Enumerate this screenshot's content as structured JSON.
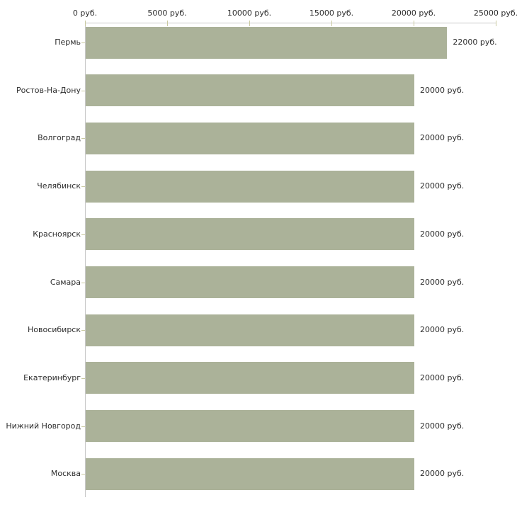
{
  "chart_data": {
    "type": "bar",
    "orientation": "horizontal",
    "title": "",
    "xlabel": "",
    "ylabel": "",
    "unit": "руб.",
    "categories": [
      "Пермь",
      "Ростов-На-Дону",
      "Волгоград",
      "Челябинск",
      "Красноярск",
      "Самара",
      "Новосибирск",
      "Екатеринбург",
      "Нижний Новгород",
      "Москва"
    ],
    "values": [
      22000,
      20000,
      20000,
      20000,
      20000,
      20000,
      20000,
      20000,
      20000,
      20000
    ],
    "value_labels": [
      "22000 руб.",
      "20000 руб.",
      "20000 руб.",
      "20000 руб.",
      "20000 руб.",
      "20000 руб.",
      "20000 руб.",
      "20000 руб.",
      "20000 руб.",
      "20000 руб."
    ],
    "xlim": [
      0,
      25000
    ],
    "x_ticks": [
      {
        "value": 0,
        "label": "0 руб."
      },
      {
        "value": 5000,
        "label": "5000 руб."
      },
      {
        "value": 10000,
        "label": "10000 руб."
      },
      {
        "value": 15000,
        "label": "15000 руб."
      },
      {
        "value": 20000,
        "label": "20000 руб."
      },
      {
        "value": 25000,
        "label": "25000 руб."
      }
    ],
    "grid": false,
    "legend": false,
    "colors": {
      "bar": "#abb299",
      "axis": "#c8c8c8",
      "tick": "#c9c9a0",
      "text": "#2d2d2d",
      "background": "#ffffff"
    }
  }
}
